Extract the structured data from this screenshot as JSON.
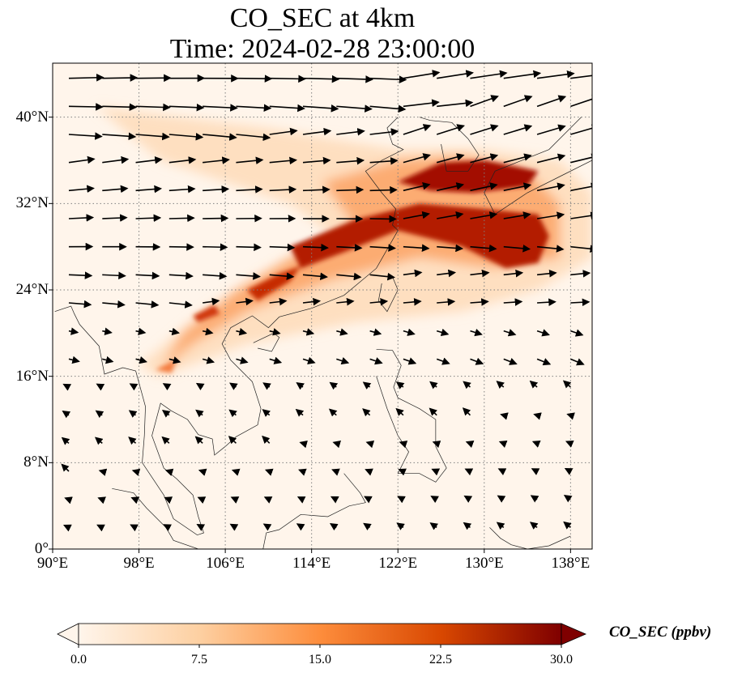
{
  "title": {
    "line1": "CO_SEC at 4km",
    "line2": "Time: 2024-02-28 23:00:00"
  },
  "map": {
    "lon_range": [
      90,
      140
    ],
    "lat_range": [
      0,
      45
    ],
    "lat_ticks": [
      {
        "value": 0,
        "label": "0°"
      },
      {
        "value": 8,
        "label": "8°N"
      },
      {
        "value": 16,
        "label": "16°N"
      },
      {
        "value": 24,
        "label": "24°N"
      },
      {
        "value": 32,
        "label": "32°N"
      },
      {
        "value": 40,
        "label": "40°N"
      }
    ],
    "lon_ticks": [
      {
        "value": 90,
        "label": "90°E"
      },
      {
        "value": 98,
        "label": "98°E"
      },
      {
        "value": 106,
        "label": "106°E"
      },
      {
        "value": 114,
        "label": "114°E"
      },
      {
        "value": 122,
        "label": "122°E"
      },
      {
        "value": 130,
        "label": "130°E"
      },
      {
        "value": 138,
        "label": "138°E"
      }
    ],
    "gridlines": true,
    "colormap": [
      "#fff5eb",
      "#fdd0a2",
      "#fd8d3c",
      "#d94801",
      "#7f0000"
    ]
  },
  "colorbar": {
    "label": "CO_SEC (ppbv)",
    "range": [
      0,
      30
    ],
    "extend": "both",
    "ticks": [
      {
        "value": 0,
        "label": "0.0"
      },
      {
        "value": 7.5,
        "label": "7.5"
      },
      {
        "value": 15,
        "label": "15.0"
      },
      {
        "value": 22.5,
        "label": "22.5"
      },
      {
        "value": 30,
        "label": "30.0"
      }
    ]
  }
}
